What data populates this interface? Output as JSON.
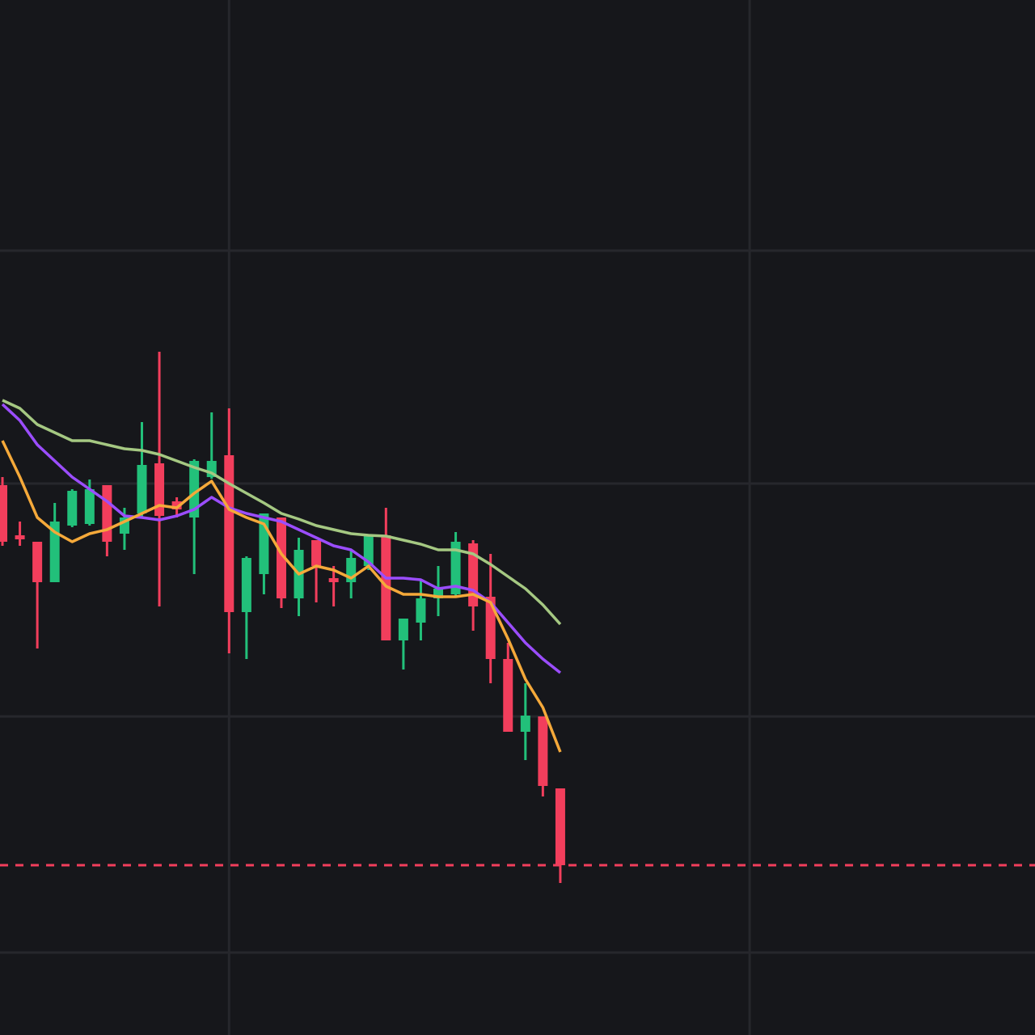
{
  "chart_data": {
    "type": "candlestick",
    "x": [
      0,
      1,
      2,
      3,
      4,
      5,
      6,
      7,
      8,
      9,
      10,
      11,
      12,
      13,
      14,
      15,
      16,
      17,
      18,
      19,
      20,
      21,
      22,
      23,
      24,
      25,
      26,
      27,
      28,
      29,
      30,
      31,
      32
    ],
    "open": [
      680,
      618,
      610,
      560,
      630,
      632,
      680,
      620,
      645,
      707,
      660,
      640,
      690,
      717,
      523,
      570,
      640,
      540,
      612,
      565,
      560,
      580,
      618,
      488,
      510,
      540,
      545,
      608,
      542,
      465,
      375,
      394,
      305
    ],
    "high": [
      690,
      635,
      610,
      658,
      675,
      687,
      680,
      652,
      758,
      845,
      665,
      712,
      770,
      775,
      592,
      645,
      640,
      615,
      612,
      580,
      600,
      618,
      652,
      515,
      562,
      580,
      622,
      612,
      595,
      485,
      435,
      394,
      305
    ],
    "low": [
      605,
      605,
      478,
      560,
      628,
      630,
      592,
      600,
      640,
      530,
      640,
      570,
      688,
      472,
      465,
      545,
      528,
      518,
      535,
      530,
      540,
      575,
      488,
      452,
      488,
      518,
      542,
      500,
      435,
      375,
      340,
      295,
      188
    ],
    "close": [
      610,
      613,
      560,
      635,
      673,
      675,
      610,
      640,
      705,
      642,
      650,
      710,
      710,
      523,
      590,
      645,
      540,
      600,
      580,
      560,
      590,
      618,
      488,
      515,
      540,
      552,
      610,
      530,
      465,
      375,
      395,
      308,
      210
    ],
    "up_color": "#22c07a",
    "down_color": "#f23e5c",
    "series": [
      {
        "color": "#a5c882",
        "values": [
          785,
          775,
          755,
          745,
          735,
          735,
          730,
          725,
          723,
          718,
          710,
          702,
          695,
          682,
          670,
          658,
          645,
          638,
          630,
          625,
          620,
          618,
          617,
          612,
          607,
          600,
          600,
          595,
          582,
          567,
          552,
          532,
          508
        ]
      },
      {
        "color": "#9b4dff",
        "values": [
          780,
          760,
          730,
          710,
          690,
          675,
          660,
          642,
          640,
          637,
          642,
          650,
          665,
          652,
          645,
          640,
          635,
          625,
          615,
          605,
          600,
          585,
          565,
          565,
          563,
          552,
          555,
          550,
          535,
          510,
          485,
          465,
          448
        ]
      },
      {
        "color": "#f5a93a",
        "values": [
          735,
          690,
          640,
          622,
          610,
          620,
          625,
          635,
          645,
          655,
          652,
          670,
          685,
          650,
          640,
          632,
          595,
          570,
          580,
          575,
          565,
          580,
          555,
          545,
          545,
          542,
          542,
          545,
          535,
          490,
          440,
          405,
          350
        ]
      }
    ],
    "price_line": 210,
    "price_line_color": "#f23e5c",
    "xlim": [
      -0.14,
      59.23
    ],
    "ylim": [
      0,
      1280
    ],
    "xticks": [
      13,
      42.86
    ],
    "yticks": [
      970,
      682,
      394,
      102
    ],
    "grid": true
  }
}
